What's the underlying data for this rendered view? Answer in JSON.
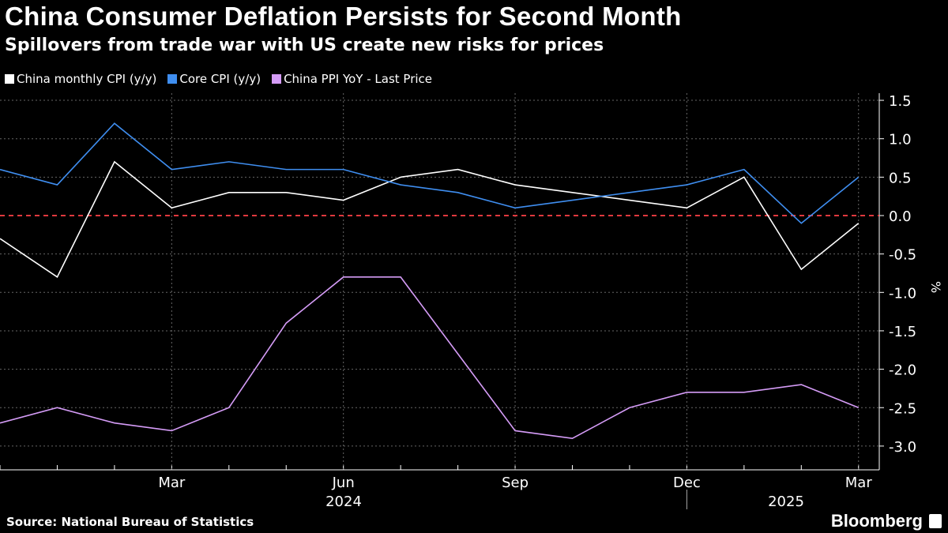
{
  "title": "China Consumer Deflation Persists for Second Month",
  "subtitle": "Spillovers from trade war with US create new risks for prices",
  "source": "Source: National Bureau of Statistics",
  "brand": "Bloomberg",
  "chart_data": {
    "type": "line",
    "x": [
      "2023-12",
      "2024-01",
      "2024-02",
      "2024-03",
      "2024-04",
      "2024-05",
      "2024-06",
      "2024-07",
      "2024-08",
      "2024-09",
      "2024-10",
      "2024-11",
      "2024-12",
      "2025-01",
      "2025-02",
      "2025-03"
    ],
    "x_tick_labels": [
      {
        "label": "Mar",
        "x": "2024-03"
      },
      {
        "label": "Jun",
        "x": "2024-06"
      },
      {
        "label": "Sep",
        "x": "2024-09"
      },
      {
        "label": "Dec",
        "x": "2024-12"
      },
      {
        "label": "Mar",
        "x": "2025-03"
      }
    ],
    "year_labels": [
      "2024",
      "2025"
    ],
    "ylabel": "%",
    "ylim": [
      -3.3,
      1.6
    ],
    "y_ticks": [
      "1.5",
      "1.0",
      "0.5",
      "0.0",
      "-0.5",
      "-1.0",
      "-1.5",
      "-2.0",
      "-2.5",
      "-3.0"
    ],
    "grid": true,
    "legend_position": "top-left",
    "zero_line_color": "#e0393e",
    "series": [
      {
        "name": "China monthly CPI (y/y)",
        "color": "#ffffff",
        "values": [
          -0.3,
          -0.8,
          0.7,
          0.1,
          0.3,
          0.3,
          0.2,
          0.5,
          0.6,
          0.4,
          0.3,
          0.2,
          0.1,
          0.5,
          -0.7,
          -0.1
        ]
      },
      {
        "name": "Core CPI (y/y)",
        "color": "#3f8ef0",
        "values": [
          0.6,
          0.4,
          1.2,
          0.6,
          0.7,
          0.6,
          0.6,
          0.4,
          0.3,
          0.1,
          0.2,
          0.3,
          0.4,
          0.6,
          -0.1,
          0.5
        ]
      },
      {
        "name": "China PPI YoY - Last Price",
        "color": "#d59cf7",
        "values": [
          -2.7,
          -2.5,
          -2.7,
          -2.8,
          -2.5,
          -1.4,
          -0.8,
          -0.8,
          -1.8,
          -2.8,
          -2.9,
          -2.5,
          -2.3,
          -2.3,
          -2.2,
          -2.5
        ]
      }
    ]
  }
}
